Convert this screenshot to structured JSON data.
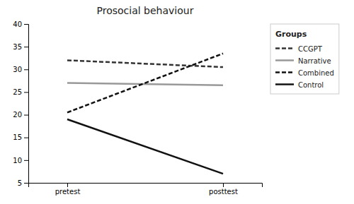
{
  "chart_data": {
    "type": "line",
    "title": "Prosocial behaviour",
    "categories": [
      "pretest",
      "posttest"
    ],
    "series": [
      {
        "name": "CCGPT",
        "color": "#333333",
        "line_style": "dashed",
        "values": [
          32,
          30.5
        ]
      },
      {
        "name": "Narrative",
        "color": "#999999",
        "line_style": "solid",
        "values": [
          27,
          26.5
        ]
      },
      {
        "name": "Combined",
        "color": "#111111",
        "line_style": "dashed",
        "values": [
          20.5,
          33.5
        ]
      },
      {
        "name": "Control",
        "color": "#111111",
        "line_style": "solid",
        "values": [
          19,
          7
        ]
      }
    ],
    "ylim": [
      5,
      40
    ],
    "yticks": [
      5,
      10,
      15,
      20,
      25,
      30,
      35,
      40
    ],
    "grid": false,
    "legend": "right",
    "legend_title": "Groups"
  }
}
